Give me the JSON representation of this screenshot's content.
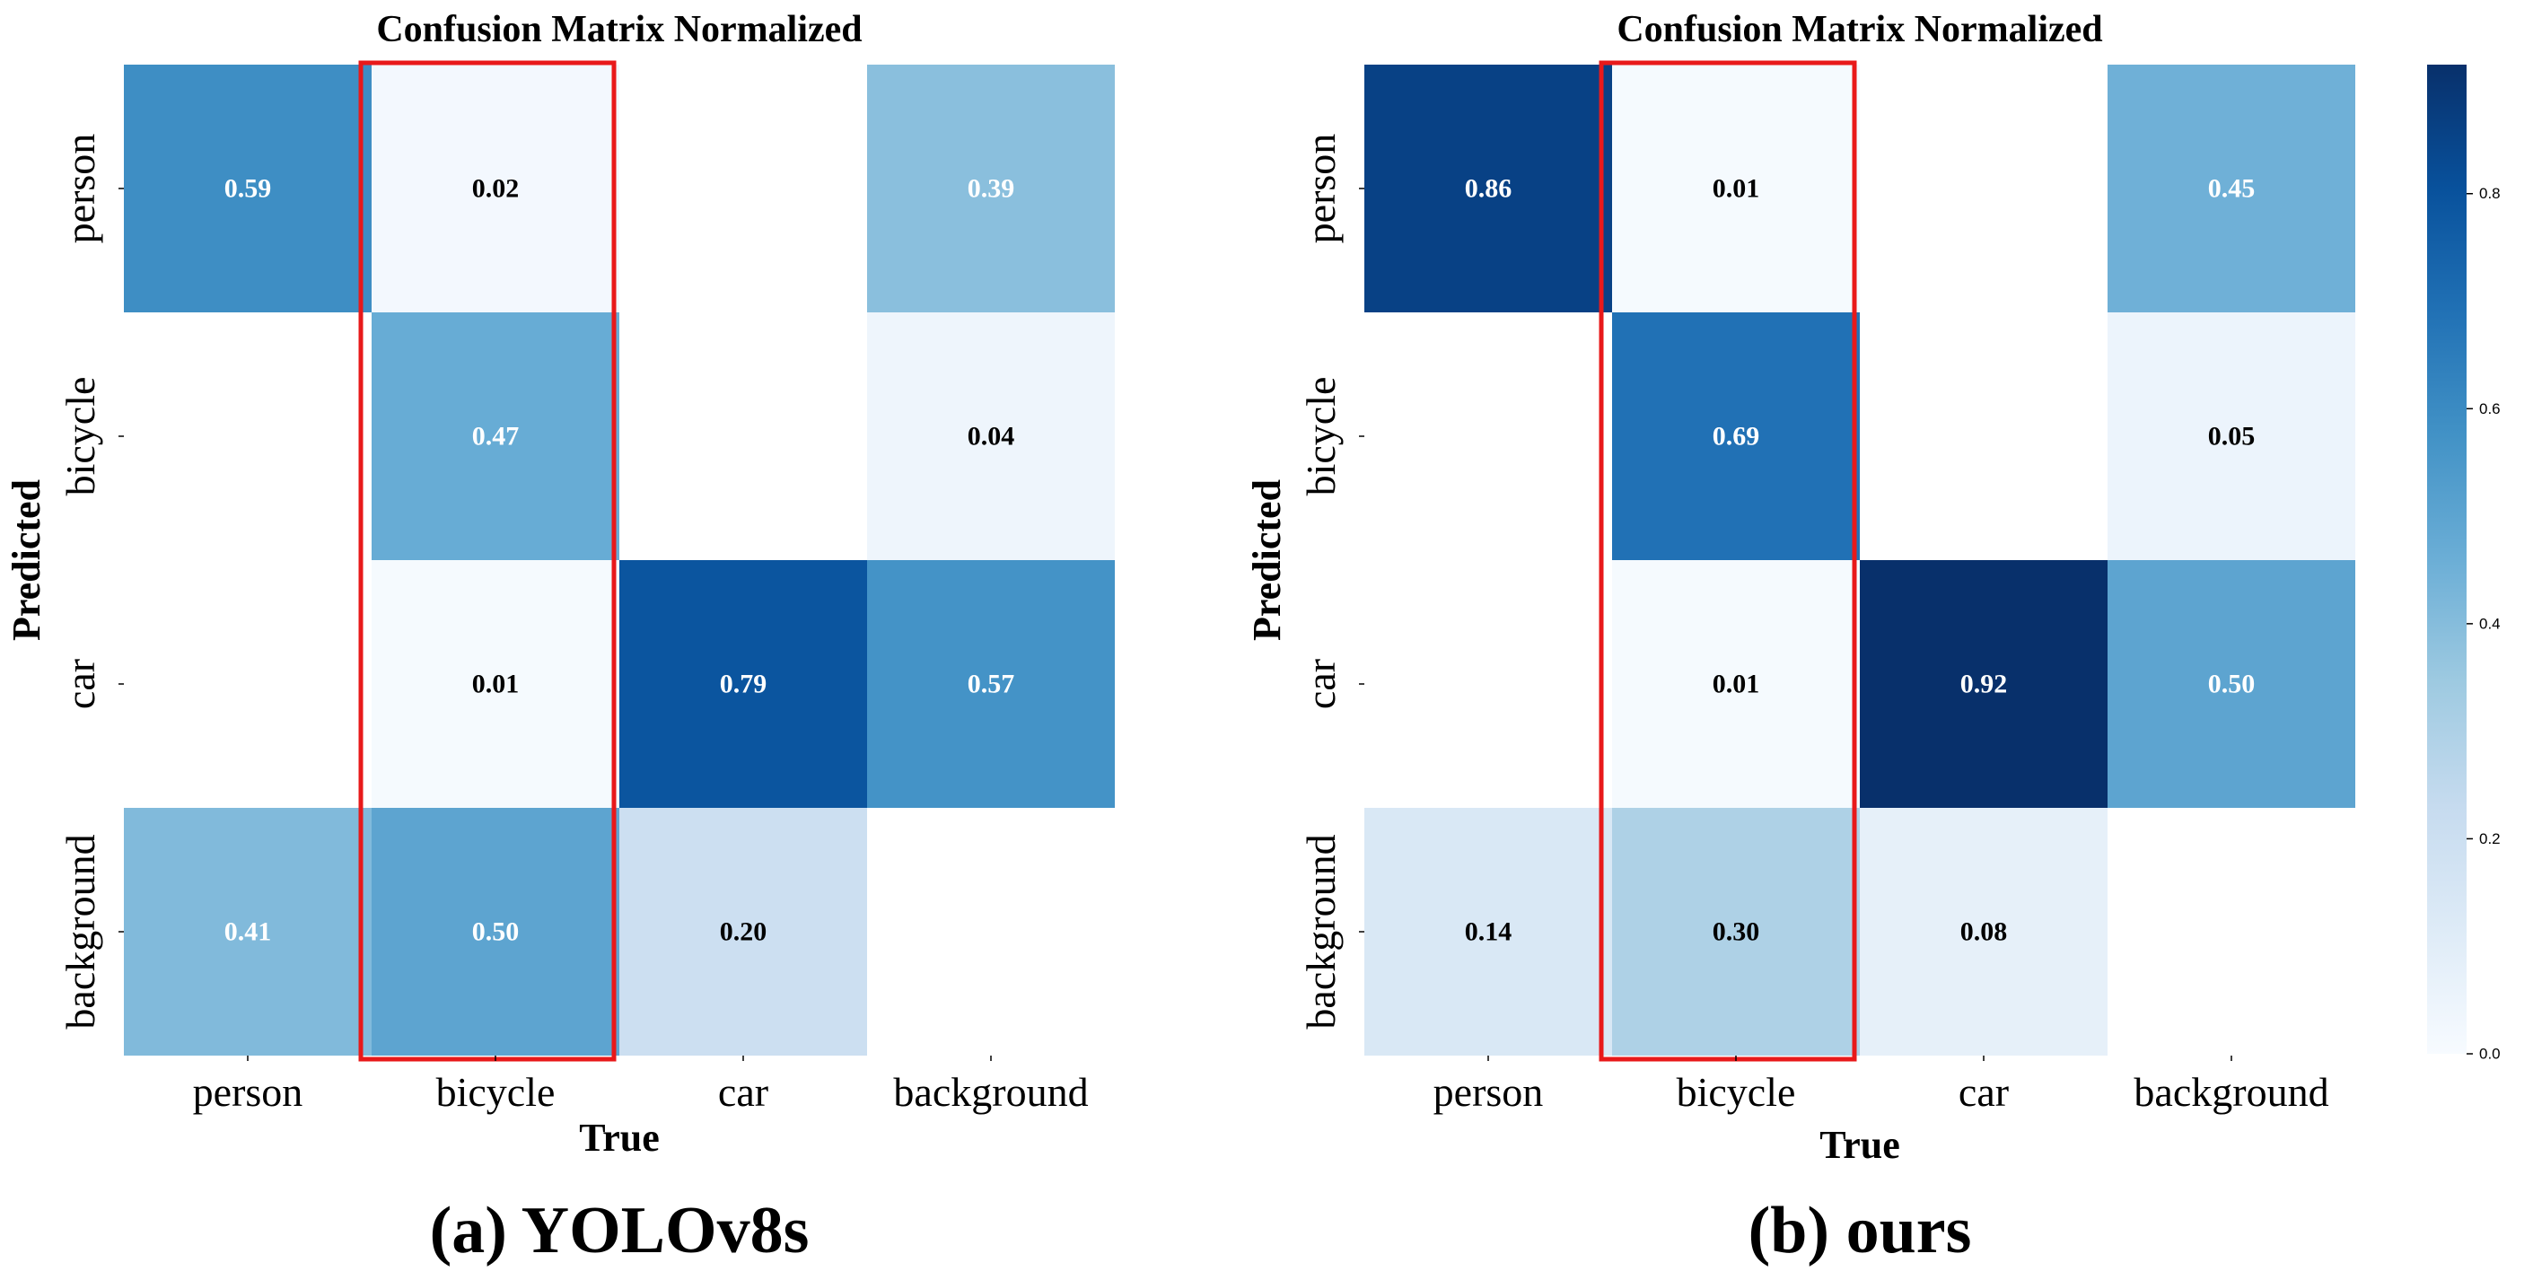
{
  "chart_data": [
    {
      "type": "heatmap",
      "title": "Confusion Matrix Normalized",
      "caption": "(a) YOLOv8s",
      "xlabel": "True",
      "ylabel": "Predicted",
      "x_categories": [
        "person",
        "bicycle",
        "car",
        "background"
      ],
      "y_categories": [
        "person",
        "bicycle",
        "car",
        "background"
      ],
      "values": [
        [
          0.59,
          0.02,
          null,
          0.39
        ],
        [
          null,
          0.47,
          null,
          0.04
        ],
        [
          null,
          0.01,
          0.79,
          0.57
        ],
        [
          0.41,
          0.5,
          0.2,
          null
        ]
      ],
      "labels": [
        [
          "0.59",
          "0.02",
          "",
          "0.39"
        ],
        [
          "",
          "0.47",
          "",
          "0.04"
        ],
        [
          "",
          "0.01",
          "0.79",
          "0.57"
        ],
        [
          "0.41",
          "0.50",
          "0.20",
          ""
        ]
      ],
      "highlight": {
        "column": "bicycle",
        "color": "#e8191a"
      }
    },
    {
      "type": "heatmap",
      "title": "Confusion Matrix Normalized",
      "caption": "(b) ours",
      "xlabel": "True",
      "ylabel": "Predicted",
      "x_categories": [
        "person",
        "bicycle",
        "car",
        "background"
      ],
      "y_categories": [
        "person",
        "bicycle",
        "car",
        "background"
      ],
      "values": [
        [
          0.86,
          0.01,
          null,
          0.45
        ],
        [
          null,
          0.69,
          null,
          0.05
        ],
        [
          null,
          0.01,
          0.92,
          0.5
        ],
        [
          0.14,
          0.3,
          0.08,
          null
        ]
      ],
      "labels": [
        [
          "0.86",
          "0.01",
          "",
          "0.45"
        ],
        [
          "",
          "0.69",
          "",
          "0.05"
        ],
        [
          "",
          "0.01",
          "0.92",
          "0.50"
        ],
        [
          "0.14",
          "0.30",
          "0.08",
          ""
        ]
      ],
      "highlight": {
        "column": "bicycle",
        "color": "#e8191a"
      }
    }
  ],
  "colorbar": {
    "colormap": "Blues",
    "range": [
      0,
      0.92
    ],
    "ticks": [
      0.0,
      0.2,
      0.4,
      0.6,
      0.8
    ],
    "tick_labels": [
      "0.0",
      "0.2",
      "0.4",
      "0.6",
      "0.8"
    ]
  }
}
